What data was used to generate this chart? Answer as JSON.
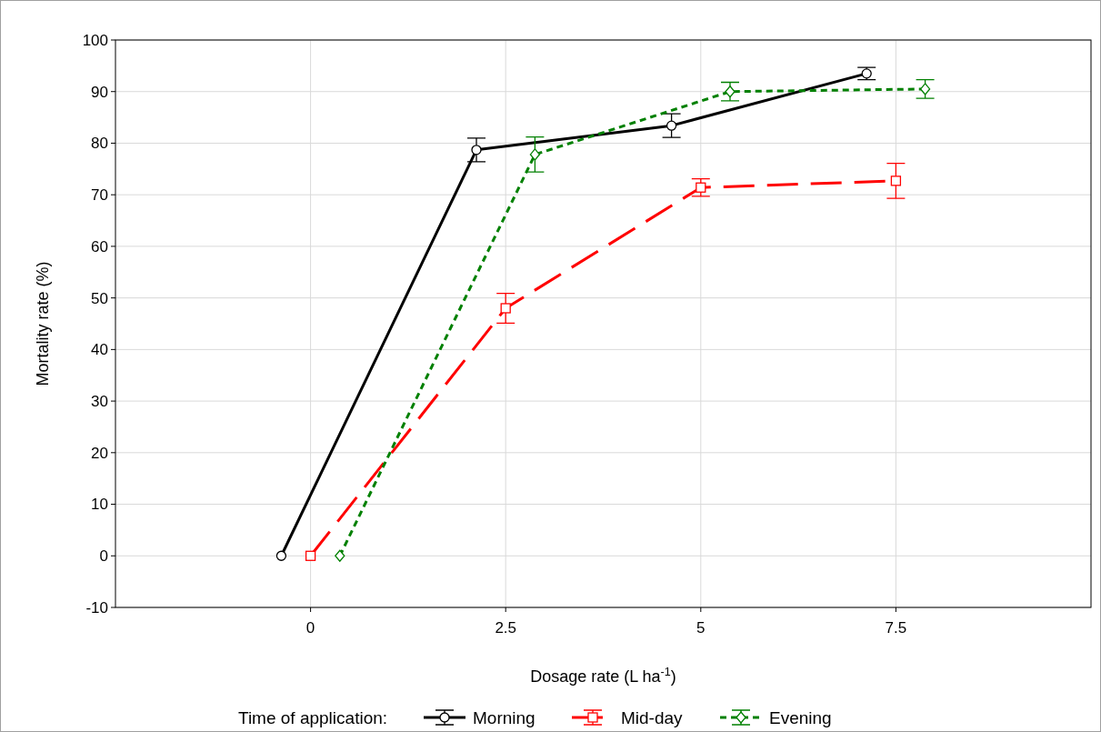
{
  "chart_data": {
    "type": "line",
    "xlabel": "Dosage rate (L ha$^{-1}$)",
    "ylabel": "Mortality rate (%)",
    "legend_title": "Time of application:",
    "categories": [
      "0",
      "2.5",
      "5",
      "7.5"
    ],
    "ylim": [
      -10,
      100
    ],
    "yticks": [
      -10,
      0,
      10,
      20,
      30,
      40,
      50,
      60,
      70,
      80,
      90,
      100
    ],
    "grid": true,
    "legend": "bottom",
    "series": [
      {
        "name": "Morning",
        "color": "#000000",
        "marker": "circle",
        "line_style": "solid",
        "values": [
          0,
          78.7,
          83.4,
          93.5
        ],
        "errors": [
          null,
          2.3,
          2.3,
          1.2
        ]
      },
      {
        "name": "Mid-day",
        "color": "#ff0000",
        "marker": "square",
        "line_style": "dashed",
        "values": [
          0,
          48,
          71.4,
          72.7
        ],
        "errors": [
          null,
          2.9,
          1.7,
          3.4
        ]
      },
      {
        "name": "Evening",
        "color": "#008000",
        "marker": "diamond",
        "line_style": "dotted",
        "values": [
          0,
          77.8,
          90,
          90.5
        ],
        "errors": [
          null,
          3.4,
          1.8,
          1.8
        ]
      }
    ]
  }
}
